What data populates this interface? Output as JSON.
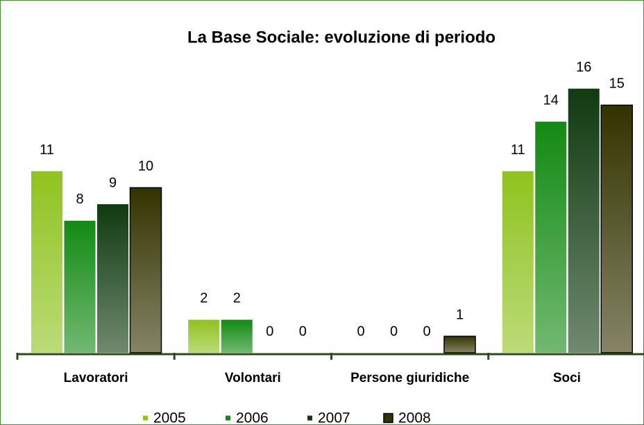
{
  "chart_data": {
    "type": "bar",
    "title": "La Base Sociale: evoluzione di periodo",
    "categories": [
      "Lavoratori",
      "Volontari",
      "Persone giuridiche",
      "Soci"
    ],
    "series": [
      {
        "name": "2005",
        "color": "#8fc31f",
        "values": [
          11,
          2,
          0,
          11
        ]
      },
      {
        "name": "2006",
        "color": "#138a13",
        "values": [
          8,
          2,
          0,
          14
        ]
      },
      {
        "name": "2007",
        "color": "#103a10",
        "values": [
          9,
          0,
          0,
          16
        ]
      },
      {
        "name": "2008",
        "color": "#333300",
        "values": [
          10,
          0,
          1,
          15
        ]
      }
    ],
    "ylim": [
      0,
      17.5
    ]
  }
}
